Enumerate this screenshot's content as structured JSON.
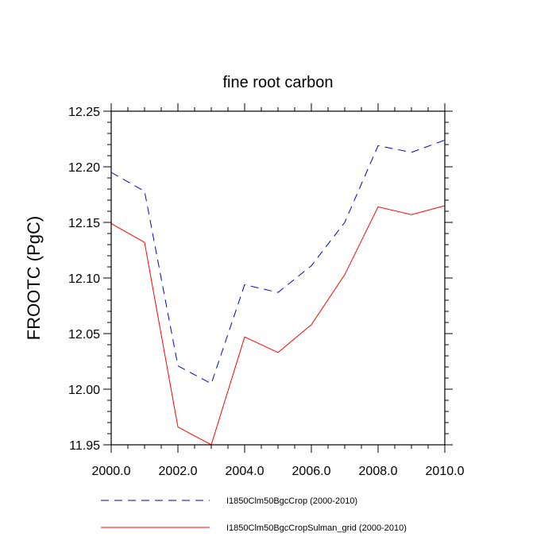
{
  "chart_data": {
    "type": "line",
    "title": "fine root carbon",
    "xlabel": "",
    "ylabel": "FROOTC  (PgC)",
    "x": [
      2000,
      2001,
      2002,
      2003,
      2004,
      2005,
      2006,
      2007,
      2008,
      2009,
      2010
    ],
    "xlim": [
      2000,
      2010
    ],
    "ylim": [
      11.95,
      12.25
    ],
    "xticks": [
      2000,
      2002,
      2004,
      2006,
      2008,
      2010
    ],
    "xtick_labels": [
      "2000.0",
      "2002.0",
      "2004.0",
      "2006.0",
      "2008.0",
      "2010.0"
    ],
    "yticks": [
      11.95,
      12.0,
      12.05,
      12.1,
      12.15,
      12.2,
      12.25
    ],
    "ytick_labels": [
      "11.95",
      "12.00",
      "12.05",
      "12.10",
      "12.15",
      "12.20",
      "12.25"
    ],
    "grid": false,
    "legend_position": "bottom",
    "series": [
      {
        "name": "I1850Clm50BgcCrop (2000-2010)",
        "color": "#0000cc",
        "style": "dashed",
        "values": [
          12.195,
          12.178,
          12.021,
          12.005,
          12.094,
          12.087,
          12.111,
          12.15,
          12.219,
          12.213,
          12.224
        ]
      },
      {
        "name": "I1850Clm50BgcCropSulman_grid (2000-2010)",
        "color": "#ff0000",
        "style": "solid",
        "values": [
          12.149,
          12.132,
          11.966,
          11.95,
          12.047,
          12.033,
          12.058,
          12.103,
          12.164,
          12.157,
          12.165
        ]
      }
    ]
  }
}
